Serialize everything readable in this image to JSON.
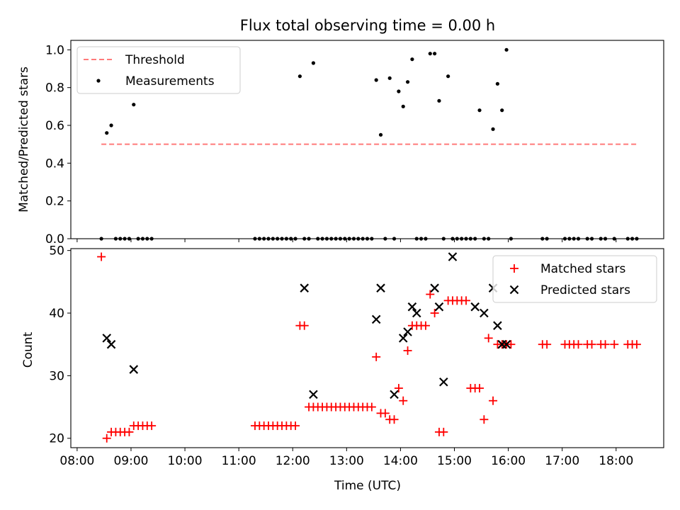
{
  "colors": {
    "threshold": "#ff7a7a",
    "measurements": "#000000",
    "matched": "#ff0000",
    "predicted": "#000000"
  },
  "chart_data": [
    {
      "type": "scatter",
      "title": "Flux total observing time = 0.00 h",
      "xlabel": "",
      "ylabel": "Matched/Predicted stars",
      "ylim": [
        0,
        1.05
      ],
      "yticks": [
        0.0,
        0.2,
        0.4,
        0.6,
        0.8,
        1.0
      ],
      "ytick_labels": [
        "0.0",
        "0.2",
        "0.4",
        "0.6",
        "0.8",
        "1.0"
      ],
      "legend_position": "top-left",
      "threshold": {
        "name": "Threshold",
        "value": 0.5,
        "x_range": [
          "08:27",
          "18:25"
        ]
      },
      "series": [
        {
          "name": "Measurements",
          "x": [
            "08:27",
            "08:33",
            "08:38",
            "08:43",
            "08:48",
            "08:53",
            "08:58",
            "09:03",
            "09:08",
            "09:13",
            "09:18",
            "09:23",
            "11:18",
            "11:23",
            "11:28",
            "11:33",
            "11:38",
            "11:43",
            "11:48",
            "11:53",
            "11:58",
            "12:03",
            "12:08",
            "12:13",
            "12:18",
            "12:23",
            "12:28",
            "12:33",
            "12:38",
            "12:43",
            "12:48",
            "12:53",
            "12:58",
            "13:03",
            "13:08",
            "13:13",
            "13:18",
            "13:23",
            "13:28",
            "13:33",
            "13:38",
            "13:43",
            "13:48",
            "13:53",
            "13:58",
            "14:03",
            "14:08",
            "14:13",
            "14:18",
            "14:23",
            "14:28",
            "14:33",
            "14:38",
            "14:43",
            "14:48",
            "14:53",
            "14:58",
            "15:03",
            "15:08",
            "15:13",
            "15:18",
            "15:23",
            "15:28",
            "15:33",
            "15:38",
            "15:43",
            "15:48",
            "15:53",
            "15:58",
            "16:03",
            "16:38",
            "16:43",
            "17:03",
            "17:08",
            "17:13",
            "17:18",
            "17:28",
            "17:33",
            "17:43",
            "17:48",
            "17:58",
            "18:13",
            "18:18",
            "18:23"
          ],
          "y": [
            0.0,
            0.56,
            0.6,
            0.0,
            0.0,
            0.0,
            0.0,
            0.71,
            0.0,
            0.0,
            0.0,
            0.0,
            0.0,
            0.0,
            0.0,
            0.0,
            0.0,
            0.0,
            0.0,
            0.0,
            0.0,
            0.0,
            0.86,
            0.0,
            0.0,
            0.93,
            0.0,
            0.0,
            0.0,
            0.0,
            0.0,
            0.0,
            0.0,
            0.0,
            0.0,
            0.0,
            0.0,
            0.0,
            0.0,
            0.84,
            0.55,
            0.0,
            0.85,
            0.0,
            0.78,
            0.7,
            0.83,
            0.95,
            0.0,
            0.0,
            0.0,
            0.98,
            0.98,
            0.73,
            0.0,
            0.86,
            0.0,
            0.0,
            0.0,
            0.0,
            0.0,
            0.0,
            0.68,
            0.0,
            0.0,
            0.58,
            0.82,
            0.68,
            1.0,
            0.0,
            0.0,
            0.0,
            0.0,
            0.0,
            0.0,
            0.0,
            0.0,
            0.0,
            0.0,
            0.0,
            0.0,
            0.0,
            0.0,
            0.0
          ]
        }
      ]
    },
    {
      "type": "scatter",
      "title": "",
      "xlabel": "Time (UTC)",
      "ylabel": "Count",
      "ylim": [
        18.5,
        50.3
      ],
      "yticks": [
        20,
        30,
        40,
        50
      ],
      "ytick_labels": [
        "20",
        "30",
        "40",
        "50"
      ],
      "xlim": [
        "07:53",
        "18:53"
      ],
      "xticks": [
        "08:00",
        "09:00",
        "10:00",
        "11:00",
        "12:00",
        "13:00",
        "14:00",
        "15:00",
        "16:00",
        "17:00",
        "18:00"
      ],
      "xtick_labels": [
        "08:00",
        "09:00",
        "10:00",
        "11:00",
        "12:00",
        "13:00",
        "14:00",
        "15:00",
        "16:00",
        "17:00",
        "18:00"
      ],
      "legend_position": "top-right",
      "series": [
        {
          "name": "Matched stars",
          "x": [
            "08:27",
            "08:33",
            "08:38",
            "08:43",
            "08:48",
            "08:53",
            "08:58",
            "09:03",
            "09:08",
            "09:13",
            "09:18",
            "09:23",
            "11:18",
            "11:23",
            "11:28",
            "11:33",
            "11:38",
            "11:43",
            "11:48",
            "11:53",
            "11:58",
            "12:03",
            "12:08",
            "12:13",
            "12:18",
            "12:23",
            "12:28",
            "12:33",
            "12:38",
            "12:43",
            "12:48",
            "12:53",
            "12:58",
            "13:03",
            "13:08",
            "13:13",
            "13:18",
            "13:23",
            "13:28",
            "13:33",
            "13:38",
            "13:43",
            "13:48",
            "13:53",
            "13:58",
            "14:03",
            "14:08",
            "14:13",
            "14:18",
            "14:23",
            "14:28",
            "14:33",
            "14:38",
            "14:43",
            "14:48",
            "14:53",
            "14:58",
            "15:03",
            "15:08",
            "15:13",
            "15:18",
            "15:23",
            "15:28",
            "15:33",
            "15:38",
            "15:43",
            "15:48",
            "15:53",
            "15:58",
            "16:03",
            "16:38",
            "16:43",
            "17:03",
            "17:08",
            "17:13",
            "17:18",
            "17:28",
            "17:33",
            "17:43",
            "17:48",
            "17:58",
            "18:13",
            "18:18",
            "18:23"
          ],
          "y": [
            49,
            20,
            21,
            21,
            21,
            21,
            21,
            22,
            22,
            22,
            22,
            22,
            22,
            22,
            22,
            22,
            22,
            22,
            22,
            22,
            22,
            22,
            38,
            38,
            25,
            25,
            25,
            25,
            25,
            25,
            25,
            25,
            25,
            25,
            25,
            25,
            25,
            25,
            25,
            33,
            24,
            24,
            23,
            23,
            28,
            26,
            34,
            38,
            38,
            38,
            38,
            43,
            40,
            21,
            21,
            42,
            42,
            42,
            42,
            42,
            28,
            28,
            28,
            23,
            36,
            26,
            35,
            35,
            35,
            35,
            35,
            35,
            35,
            35,
            35,
            35,
            35,
            35,
            35,
            35,
            35,
            35,
            35,
            35
          ]
        },
        {
          "name": "Predicted stars",
          "x": [
            "08:33",
            "08:38",
            "09:03",
            "12:13",
            "12:23",
            "13:33",
            "13:38",
            "13:53",
            "14:03",
            "14:08",
            "14:13",
            "14:18",
            "14:38",
            "14:43",
            "14:48",
            "14:58",
            "15:23",
            "15:33",
            "15:43",
            "15:48",
            "15:53",
            "15:58"
          ],
          "y": [
            36,
            35,
            31,
            44,
            27,
            39,
            44,
            27,
            36,
            37,
            41,
            40,
            44,
            41,
            29,
            49,
            41,
            40,
            44,
            38,
            35,
            35
          ]
        }
      ]
    }
  ]
}
